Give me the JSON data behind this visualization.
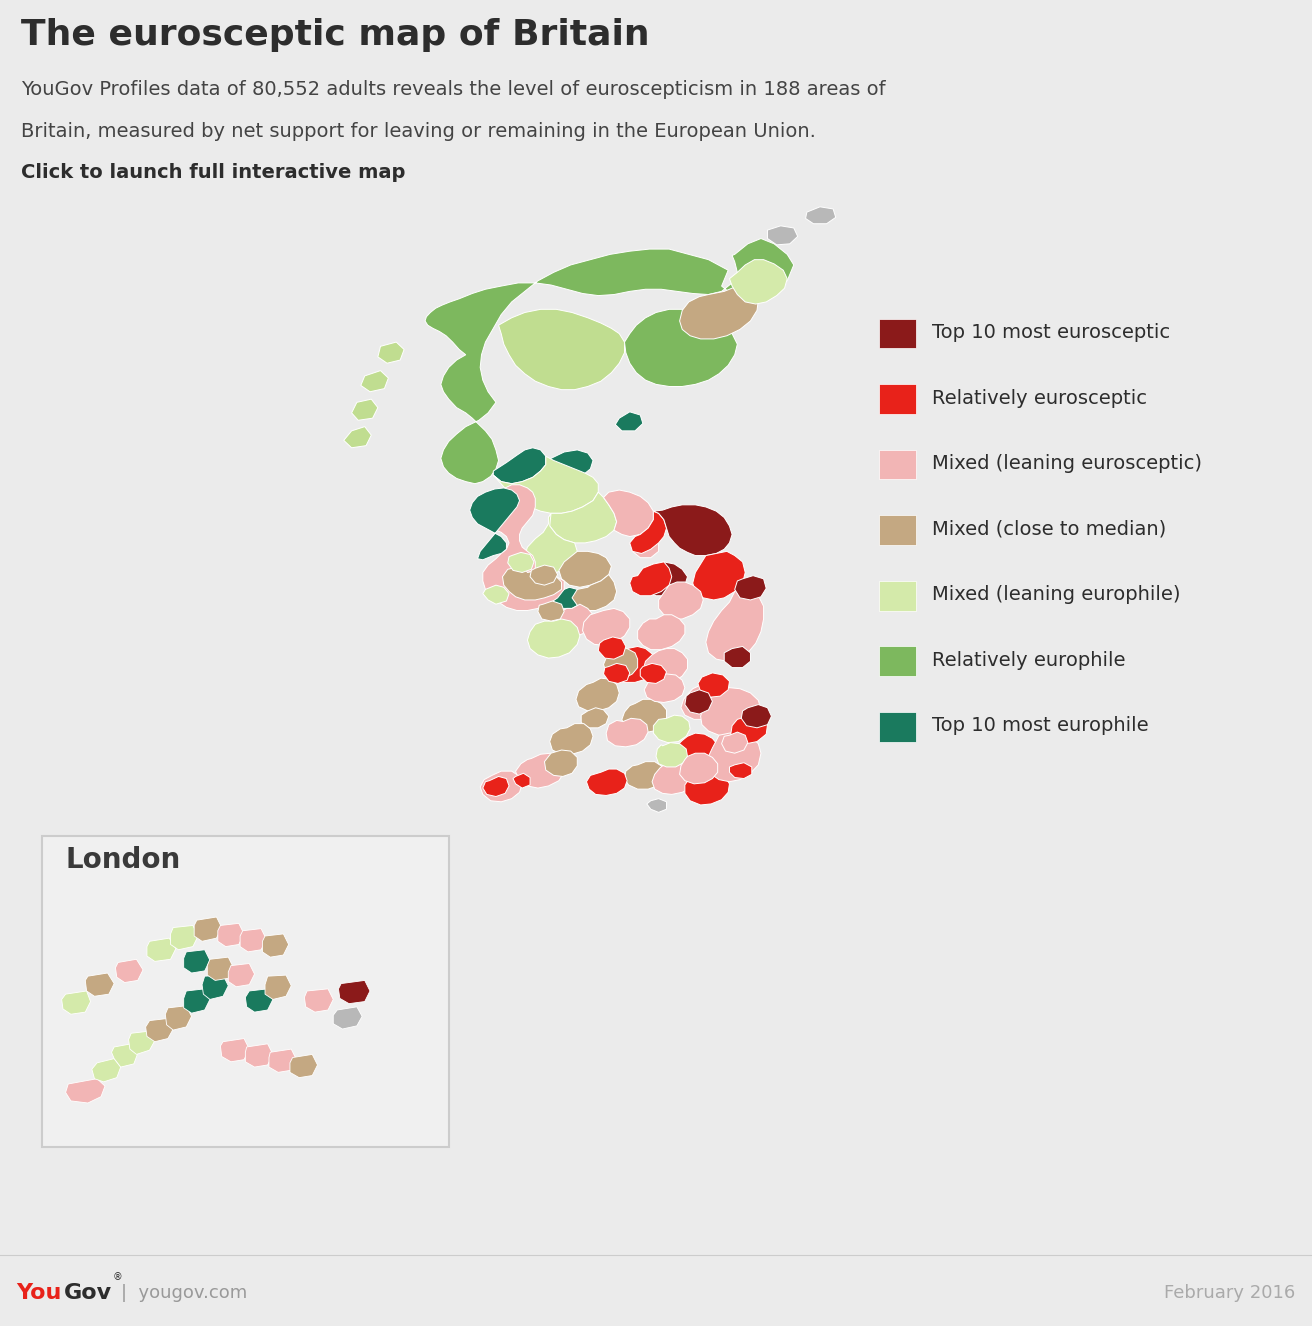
{
  "title": "The eurosceptic map of Britain",
  "subtitle_line1": "YouGov Profiles data of 80,552 adults reveals the level of euroscepticism in 188 areas of",
  "subtitle_line2": "Britain, measured by net support for leaving or remaining in the European Union.",
  "subtitle_line3": "Click to launch full interactive map",
  "footer_right": "February 2016",
  "background_color": "#ebebeb",
  "header_bg": "#ebebeb",
  "legend_items": [
    {
      "label": "Top 10 most eurosceptic",
      "color": "#8b1a1a"
    },
    {
      "label": "Relatively eurosceptic",
      "color": "#e8221a"
    },
    {
      "label": "Mixed (leaning eurosceptic)",
      "color": "#f2b5b5"
    },
    {
      "label": "Mixed (close to median)",
      "color": "#c4a882"
    },
    {
      "label": "Mixed (leaning europhile)",
      "color": "#d4eaaa"
    },
    {
      "label": "Relatively europhile",
      "color": "#7db85e"
    },
    {
      "label": "Top 10 most europhile",
      "color": "#1a7a5e"
    }
  ],
  "title_fontsize": 26,
  "subtitle_fontsize": 14,
  "footer_fontsize": 13,
  "legend_fontsize": 14,
  "london_label_fontsize": 20,
  "colors": {
    "dark_red": "#8b1a1a",
    "red": "#e8221a",
    "light_pink": "#f2b5b5",
    "tan": "#c4a882",
    "light_green": "#d4eaaa",
    "med_green": "#7db85e",
    "dark_teal": "#1a7a5e",
    "gray": "#b8b8b8",
    "pale_green": "#c0dd90"
  }
}
